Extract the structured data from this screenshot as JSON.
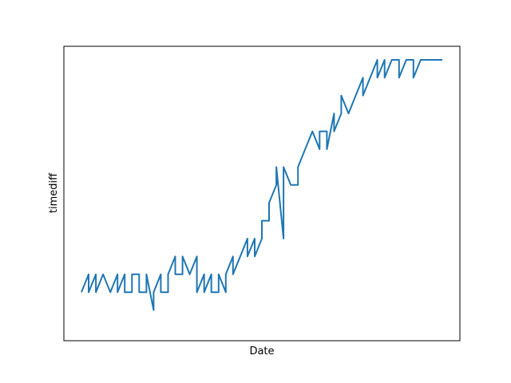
{
  "chart_data": {
    "type": "line",
    "title": "",
    "xlabel": "Date",
    "ylabel": "timediff",
    "x_ticks_visible": false,
    "y_ticks_visible": false,
    "grid": false,
    "legend": "none",
    "xlim": [
      0,
      100
    ],
    "ylim": [
      -1,
      14
    ],
    "series": [
      {
        "color": "#1f77b4",
        "x": [
          0,
          2,
          2,
          4,
          4,
          6,
          6,
          8,
          8,
          10,
          10,
          12,
          12,
          14,
          14,
          16,
          16,
          18,
          18,
          20,
          20,
          22,
          22,
          24,
          24,
          26,
          26,
          28,
          28,
          30,
          30,
          32,
          32,
          34,
          34,
          36,
          36,
          38,
          38,
          40,
          40,
          42,
          42,
          44,
          44,
          46,
          46,
          48,
          48,
          50,
          50,
          52,
          52,
          54,
          54,
          56,
          56,
          58,
          58,
          60,
          60,
          62,
          62,
          64,
          64,
          66,
          66,
          68,
          68,
          70,
          70,
          72,
          72,
          74,
          74,
          76,
          76,
          78,
          78,
          80,
          80,
          82,
          82,
          84,
          84,
          86,
          86,
          88,
          88,
          90,
          90,
          92,
          92,
          94,
          94,
          96,
          96,
          98,
          98,
          100
        ],
        "y": [
          1,
          2,
          1,
          2,
          1,
          2,
          2,
          1,
          1,
          2,
          1,
          2,
          1,
          1,
          2,
          2,
          1,
          1,
          2,
          0,
          1,
          2,
          1,
          1,
          2,
          3,
          2,
          2,
          3,
          2,
          2,
          3,
          1,
          2,
          1,
          2,
          1,
          1,
          2,
          1,
          2,
          3,
          2,
          3,
          3,
          4,
          3,
          4,
          3,
          4,
          5,
          5,
          6,
          7,
          8,
          4,
          8,
          7,
          7,
          7,
          8,
          9,
          9,
          10,
          10,
          9,
          10,
          10,
          9,
          11,
          10,
          11,
          12,
          11,
          11,
          12,
          12,
          13,
          12,
          13,
          13,
          14,
          13,
          14,
          13,
          14,
          14,
          14,
          13,
          14,
          14,
          14,
          13,
          14,
          14,
          14,
          14,
          14,
          14,
          14
        ]
      }
    ]
  }
}
